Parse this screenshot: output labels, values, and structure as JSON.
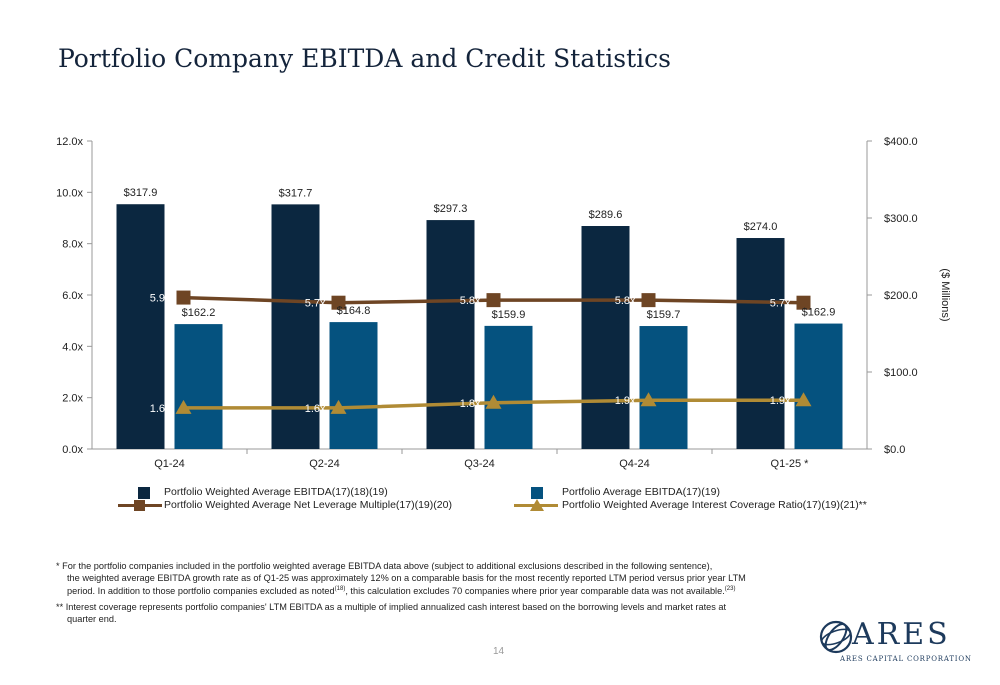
{
  "title": "Portfolio Company EBITDA and Credit Statistics",
  "chart_data": {
    "type": "bar",
    "categories": [
      "Q1-24",
      "Q2-24",
      "Q3-24",
      "Q4-24",
      "Q1-25 *"
    ],
    "series": [
      {
        "name": "Portfolio Weighted Average EBITDA(17)(18)(19)",
        "kind": "bar",
        "axis": "right",
        "color": "#0b2740",
        "values": [
          317.9,
          317.7,
          297.3,
          289.6,
          274.0
        ],
        "labels": [
          "$317.9",
          "$317.7",
          "$297.3",
          "$289.6",
          "$274.0"
        ]
      },
      {
        "name": "Portfolio Average EBITDA(17)(19)",
        "kind": "bar",
        "axis": "right",
        "color": "#05527f",
        "values": [
          162.2,
          164.8,
          159.9,
          159.7,
          162.9
        ],
        "labels": [
          "$162.2",
          "$164.8",
          "$159.9",
          "$159.7",
          "$162.9"
        ]
      },
      {
        "name": "Portfolio Weighted Average Net Leverage Multiple(17)(19)(20)",
        "kind": "line",
        "marker": "square",
        "axis": "left",
        "color": "#6e4524",
        "values": [
          5.9,
          5.7,
          5.8,
          5.8,
          5.7
        ],
        "labels": [
          "5.9x",
          "5.7x",
          "5.8x",
          "5.8x",
          "5.7x"
        ]
      },
      {
        "name": "Portfolio Weighted Average Interest Coverage Ratio(17)(19)(21)**",
        "kind": "line",
        "marker": "triangle",
        "axis": "left",
        "color": "#b08b35",
        "values": [
          1.6,
          1.6,
          1.8,
          1.9,
          1.9
        ],
        "labels": [
          "1.6x",
          "1.6x",
          "1.8x",
          "1.9x",
          "1.9x"
        ]
      }
    ],
    "left_axis": {
      "ylim": [
        0,
        12
      ],
      "ticks": [
        "0.0x",
        "2.0x",
        "4.0x",
        "6.0x",
        "8.0x",
        "10.0x",
        "12.0x"
      ]
    },
    "right_axis": {
      "ylim": [
        0,
        400
      ],
      "label": "($ Millions)",
      "ticks": [
        "$0.0",
        "$100.0",
        "$200.0",
        "$300.0",
        "$400.0"
      ]
    }
  },
  "footnotes": {
    "note1_lines": [
      "*   For the portfolio companies included in the portfolio weighted average EBITDA data above (subject to additional exclusions described in the following sentence),",
      "the weighted average EBITDA growth rate as of Q1-25 was approximately 12% on a comparable basis for the most recently reported LTM period versus prior year LTM",
      "period. In addition to those portfolio companies excluded as noted",
      "(18)",
      ", this calculation excludes 70 companies where prior year comparable data was not available.",
      "(23)"
    ],
    "note2_lines": [
      "** Interest coverage represents portfolio companies' LTM EBITDA as a multiple of implied annualized cash interest based on the borrowing levels and market rates at",
      "quarter end."
    ]
  },
  "page_number": "14",
  "logo": {
    "word": "ARES",
    "sub": "ARES CAPITAL CORPORATION"
  }
}
